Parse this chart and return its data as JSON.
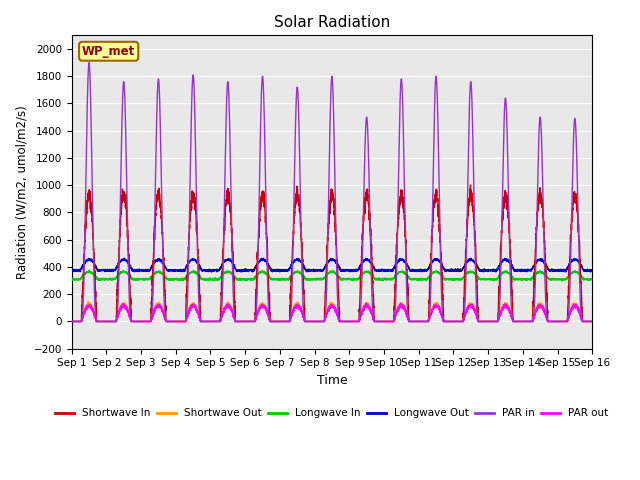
{
  "title": "Solar Radiation",
  "xlabel": "Time",
  "ylabel": "Radiation (W/m2, umol/m2/s)",
  "ylim": [
    -200,
    2100
  ],
  "yticks": [
    -200,
    0,
    200,
    400,
    600,
    800,
    1000,
    1200,
    1400,
    1600,
    1800,
    2000
  ],
  "xtick_labels": [
    "Sep 1",
    "Sep 2",
    "Sep 3",
    "Sep 4",
    "Sep 5",
    "Sep 6",
    "Sep 7",
    "Sep 8",
    "Sep 9",
    "Sep 10",
    "Sep 11",
    "Sep 12",
    "Sep 13",
    "Sep 14",
    "Sep 15",
    "Sep 16"
  ],
  "station_label": "WP_met",
  "fig_bg": "#ffffff",
  "plot_bg": "#e8e8e8",
  "legend_entries": [
    {
      "label": "Shortwave In",
      "color": "#cc0000"
    },
    {
      "label": "Shortwave Out",
      "color": "#ff9900"
    },
    {
      "label": "Longwave In",
      "color": "#00cc00"
    },
    {
      "label": "Longwave Out",
      "color": "#0000cc"
    },
    {
      "label": "PAR in",
      "color": "#9933cc"
    },
    {
      "label": "PAR out",
      "color": "#ff00ff"
    }
  ],
  "n_days": 15,
  "shortwave_in_peak": 930,
  "shortwave_out_peak": 130,
  "longwave_in_base": 310,
  "longwave_out_base": 375,
  "par_in_peaks": [
    1900,
    1760,
    1780,
    1810,
    1760,
    1800,
    1720,
    1800,
    1500,
    1780,
    1800,
    1760,
    1640,
    1500,
    1490
  ],
  "par_out_peak": 115,
  "figsize": [
    6.4,
    4.8
  ],
  "dpi": 100
}
